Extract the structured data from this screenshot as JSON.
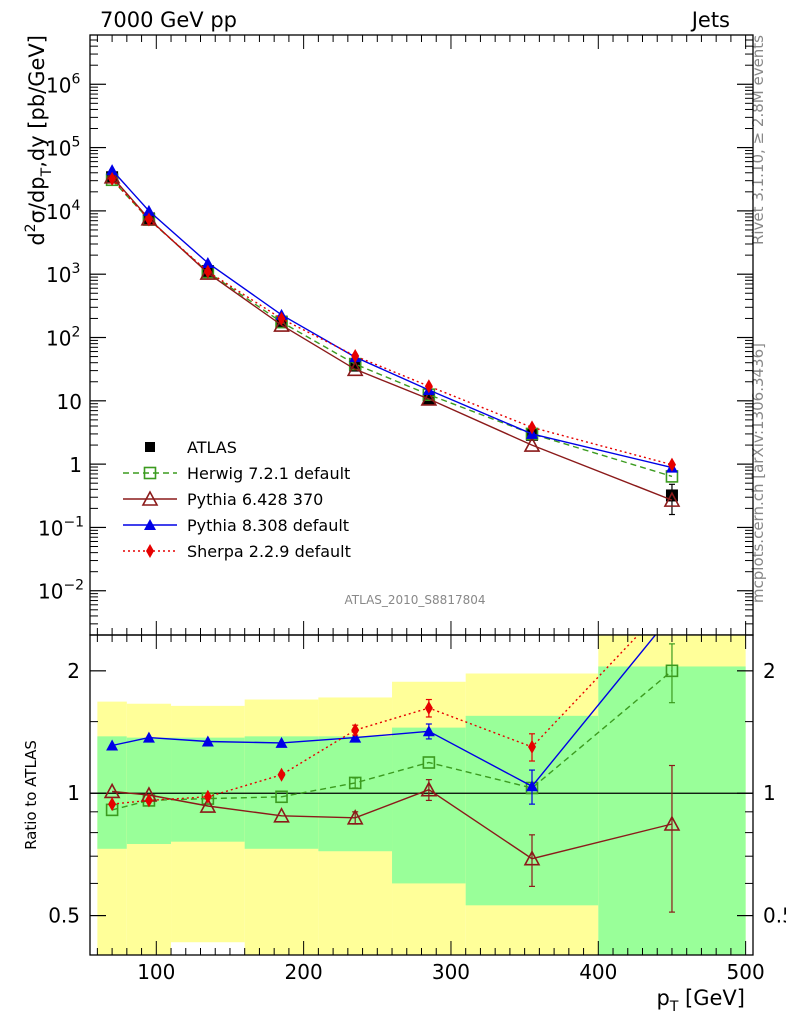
{
  "header": {
    "left": "7000 GeV pp",
    "right": "Jets"
  },
  "side": {
    "rivet": "Rivet 3.1.10, ≥ 2.8M events",
    "mcplots": "mcplots.cern.ch [arXiv:1306.3436]"
  },
  "watermark": "ATLAS_2010_S8817804",
  "chart_data": [
    {
      "type": "line",
      "panel": "main",
      "ylabel_parts": [
        "d",
        "2",
        "σ/dp",
        "T",
        ",dy [pb/GeV]"
      ],
      "xlabel": "",
      "yscale": "log",
      "xlim": [
        55,
        505
      ],
      "ylim": [
        0.002,
        6000000
      ],
      "y_ticks": [
        {
          "v": 0.01,
          "base": "10",
          "exp": "−2"
        },
        {
          "v": 0.1,
          "base": "10",
          "exp": "−1"
        },
        {
          "v": 1,
          "base": "1",
          "exp": ""
        },
        {
          "v": 10,
          "base": "10",
          "exp": ""
        },
        {
          "v": 100,
          "base": "10",
          "exp": "2"
        },
        {
          "v": 1000,
          "base": "10",
          "exp": "3"
        },
        {
          "v": 10000,
          "base": "10",
          "exp": "4"
        },
        {
          "v": 100000,
          "base": "10",
          "exp": "5"
        },
        {
          "v": 1000000,
          "base": "10",
          "exp": "6"
        }
      ],
      "x": [
        70,
        95,
        135,
        185,
        235,
        285,
        355,
        450
      ],
      "series": [
        {
          "name": "ATLAS",
          "color": "#000000",
          "marker": "square-filled",
          "dash": "none",
          "values": [
            34000,
            7600,
            1120,
            178,
            36,
            10.5,
            2.9,
            0.32
          ],
          "err_lo": [
            0,
            0,
            0,
            0,
            0,
            0,
            0,
            0.16
          ],
          "err_hi": [
            0,
            0,
            0,
            0,
            0,
            0,
            0,
            0.16
          ]
        },
        {
          "name": "Herwig 7.2.1 default",
          "color": "#3b9b1f",
          "marker": "square-open",
          "dash": "6,4",
          "values": [
            31000,
            7300,
            1080,
            175,
            38,
            12.5,
            3.0,
            0.64
          ]
        },
        {
          "name": "Pythia 6.428 370",
          "color": "#8b1a1a",
          "marker": "triangle-open",
          "dash": "none",
          "values": [
            34500,
            7500,
            1040,
            157,
            31.5,
            10.7,
            2.0,
            0.27
          ]
        },
        {
          "name": "Pythia 8.308 default",
          "color": "#0000e6",
          "marker": "triangle-filled",
          "dash": "none",
          "values": [
            44000,
            10000,
            1500,
            228,
            49,
            14.8,
            3.0,
            0.88
          ]
        },
        {
          "name": "Sherpa 2.2.9 default",
          "color": "#e60000",
          "marker": "diamond-filled",
          "dash": "2,3",
          "values": [
            32000,
            7300,
            1100,
            198,
            51,
            17,
            3.8,
            0.98
          ]
        }
      ]
    },
    {
      "type": "line",
      "panel": "ratio",
      "ylabel": "Ratio to ATLAS",
      "xlabel_parts": [
        "p",
        "T",
        " [GeV]"
      ],
      "yscale": "log",
      "xlim": [
        55,
        505
      ],
      "ylim": [
        0.4,
        2.45
      ],
      "reference": 1,
      "y_ticks": [
        {
          "v": 0.5,
          "label": "0.5"
        },
        {
          "v": 1,
          "label": "1"
        },
        {
          "v": 2,
          "label": "2"
        }
      ],
      "x_ticks": [
        {
          "v": 100,
          "label": "100"
        },
        {
          "v": 200,
          "label": "200"
        },
        {
          "v": 300,
          "label": "300"
        },
        {
          "v": 400,
          "label": "400"
        },
        {
          "v": 500,
          "label": "500"
        }
      ],
      "uncertainty_bands": {
        "bins": [
          [
            60,
            80
          ],
          [
            80,
            110
          ],
          [
            110,
            160
          ],
          [
            160,
            210
          ],
          [
            210,
            260
          ],
          [
            260,
            310
          ],
          [
            310,
            400
          ],
          [
            400,
            500
          ]
        ],
        "stat_color": "#99ff99",
        "total_color": "#ffff99",
        "stat_lo": [
          0.73,
          0.75,
          0.76,
          0.73,
          0.72,
          0.6,
          0.53,
          0.4
        ],
        "stat_hi": [
          1.38,
          1.37,
          1.37,
          1.38,
          1.38,
          1.45,
          1.55,
          2.05
        ],
        "total_lo": [
          0.4,
          0.4,
          0.43,
          0.4,
          0.4,
          0.4,
          0.4,
          0.4
        ],
        "total_hi": [
          1.68,
          1.66,
          1.64,
          1.7,
          1.72,
          1.88,
          1.97,
          2.45
        ]
      },
      "x": [
        70,
        95,
        135,
        185,
        235,
        285,
        355,
        450
      ],
      "series": [
        {
          "name": "Herwig 7.2.1 default",
          "color": "#3b9b1f",
          "marker": "square-open",
          "dash": "6,4",
          "values": [
            0.91,
            0.96,
            0.97,
            0.98,
            1.06,
            1.19,
            1.03,
            2.0
          ],
          "err_lo": [
            0,
            0,
            0,
            0,
            0.03,
            0,
            0,
            0.33
          ],
          "err_hi": [
            0,
            0,
            0,
            0,
            0.03,
            0,
            0,
            0.33
          ]
        },
        {
          "name": "Pythia 6.428 370",
          "color": "#8b1a1a",
          "marker": "triangle-open",
          "dash": "none",
          "values": [
            1.01,
            0.99,
            0.93,
            0.88,
            0.87,
            1.02,
            0.69,
            0.84
          ],
          "err_lo": [
            0,
            0,
            0,
            0,
            0.03,
            0.06,
            0.1,
            0.33
          ],
          "err_hi": [
            0,
            0,
            0,
            0,
            0.03,
            0.06,
            0.1,
            0.33
          ]
        },
        {
          "name": "Pythia 8.308 default",
          "color": "#0000e6",
          "marker": "triangle-filled",
          "dash": "none",
          "values": [
            1.31,
            1.37,
            1.34,
            1.33,
            1.37,
            1.42,
            1.04,
            2.75
          ],
          "err_lo": [
            0,
            0,
            0,
            0,
            0,
            0.06,
            0.1,
            0
          ],
          "err_hi": [
            0,
            0,
            0,
            0,
            0,
            0.06,
            0.1,
            0
          ]
        },
        {
          "name": "Sherpa 2.2.9 default",
          "color": "#e60000",
          "marker": "diamond-filled",
          "dash": "2,3",
          "values": [
            0.94,
            0.96,
            0.98,
            1.11,
            1.43,
            1.62,
            1.3,
            3.0
          ],
          "err_lo": [
            0,
            0,
            0,
            0,
            0.04,
            0.08,
            0.1,
            0
          ],
          "err_hi": [
            0,
            0,
            0,
            0,
            0.04,
            0.08,
            0.1,
            0
          ]
        }
      ]
    }
  ]
}
